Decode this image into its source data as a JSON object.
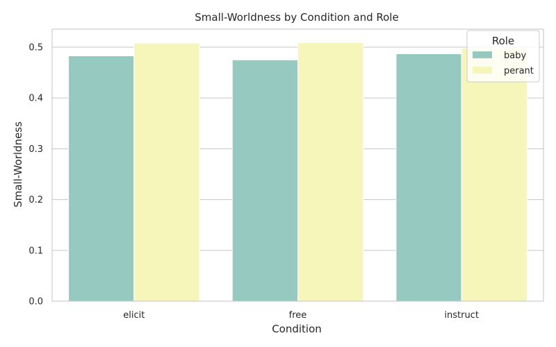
{
  "chart_data": {
    "type": "bar",
    "title": "Small-Worldness by Condition and Role",
    "xlabel": "Condition",
    "ylabel": "Small-Worldness",
    "categories": [
      "elicit",
      "free",
      "instruct"
    ],
    "series": [
      {
        "name": "baby",
        "values": [
          0.483,
          0.475,
          0.487
        ],
        "color": "#96c9bf"
      },
      {
        "name": "perant",
        "values": [
          0.508,
          0.509,
          0.498
        ],
        "color": "#f6f6bb"
      }
    ],
    "ylim": [
      0,
      0.5355
    ],
    "yticks": [
      0.0,
      0.1,
      0.2,
      0.3,
      0.4,
      0.5
    ],
    "ytick_labels": [
      "0.0",
      "0.1",
      "0.2",
      "0.3",
      "0.4",
      "0.5"
    ],
    "grid": "horizontal",
    "legend": {
      "title": "Role",
      "placement": "top-right"
    }
  }
}
